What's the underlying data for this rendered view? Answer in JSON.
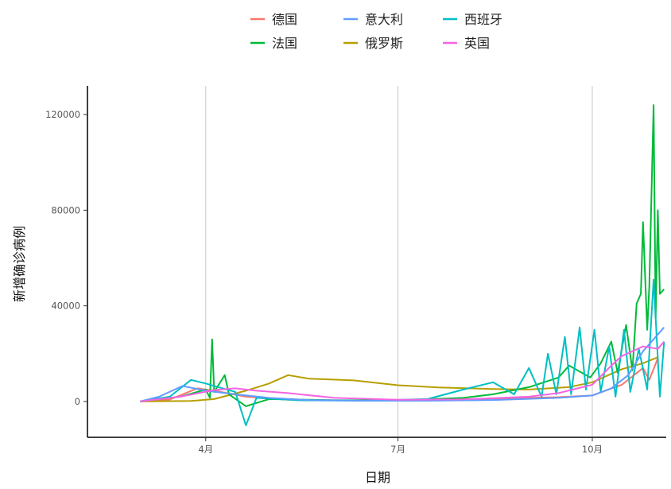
{
  "chart_data": {
    "type": "line",
    "xlabel": "日期",
    "ylabel": "新增确诊病例",
    "x_ticks": [
      {
        "label": "4月",
        "date": "2020-04-01"
      },
      {
        "label": "7月",
        "date": "2020-07-01"
      },
      {
        "label": "10月",
        "date": "2020-10-01"
      }
    ],
    "y_ticks": [
      0,
      40000,
      80000,
      120000
    ],
    "ylim": [
      -15000,
      132000
    ],
    "xlim": [
      "2020-02-05",
      "2020-11-05"
    ],
    "grid": "vertical-major",
    "legend_position": "top",
    "series": [
      {
        "name": "德国",
        "color": "#F8766D",
        "points": [
          [
            "2020-03-01",
            0
          ],
          [
            "2020-03-15",
            800
          ],
          [
            "2020-03-28",
            5500
          ],
          [
            "2020-04-05",
            4500
          ],
          [
            "2020-04-20",
            2000
          ],
          [
            "2020-05-10",
            700
          ],
          [
            "2020-06-15",
            400
          ],
          [
            "2020-07-15",
            500
          ],
          [
            "2020-08-15",
            1200
          ],
          [
            "2020-09-15",
            1800
          ],
          [
            "2020-10-01",
            2500
          ],
          [
            "2020-10-15",
            7000
          ],
          [
            "2020-10-25",
            14000
          ],
          [
            "2020-10-28",
            9000
          ],
          [
            "2020-11-01",
            18000
          ]
        ]
      },
      {
        "name": "俄罗斯",
        "color": "#B79F00",
        "points": [
          [
            "2020-03-01",
            0
          ],
          [
            "2020-03-25",
            200
          ],
          [
            "2020-04-05",
            1000
          ],
          [
            "2020-04-20",
            4500
          ],
          [
            "2020-05-01",
            7500
          ],
          [
            "2020-05-10",
            11000
          ],
          [
            "2020-05-20",
            9500
          ],
          [
            "2020-06-10",
            8800
          ],
          [
            "2020-07-01",
            6800
          ],
          [
            "2020-07-20",
            5900
          ],
          [
            "2020-08-15",
            5200
          ],
          [
            "2020-09-01",
            5000
          ],
          [
            "2020-09-20",
            6000
          ],
          [
            "2020-10-01",
            8000
          ],
          [
            "2020-10-15",
            13500
          ],
          [
            "2020-10-25",
            16000
          ],
          [
            "2020-11-01",
            18500
          ]
        ]
      },
      {
        "name": "法国",
        "color": "#00BA38",
        "points": [
          [
            "2020-03-01",
            0
          ],
          [
            "2020-03-20",
            2000
          ],
          [
            "2020-04-01",
            5000
          ],
          [
            "2020-04-03",
            1500
          ],
          [
            "2020-04-04",
            26000
          ],
          [
            "2020-04-05",
            4000
          ],
          [
            "2020-04-10",
            11000
          ],
          [
            "2020-04-12",
            3000
          ],
          [
            "2020-04-20",
            -2000
          ],
          [
            "2020-05-01",
            1000
          ],
          [
            "2020-06-01",
            500
          ],
          [
            "2020-07-01",
            500
          ],
          [
            "2020-08-01",
            1500
          ],
          [
            "2020-08-15",
            3000
          ],
          [
            "2020-09-01",
            6000
          ],
          [
            "2020-09-15",
            10000
          ],
          [
            "2020-09-20",
            15000
          ],
          [
            "2020-09-30",
            10000
          ],
          [
            "2020-10-05",
            16000
          ],
          [
            "2020-10-10",
            25000
          ],
          [
            "2020-10-13",
            12000
          ],
          [
            "2020-10-17",
            32000
          ],
          [
            "2020-10-20",
            13000
          ],
          [
            "2020-10-22",
            41000
          ],
          [
            "2020-10-24",
            45000
          ],
          [
            "2020-10-25",
            75000
          ],
          [
            "2020-10-27",
            30000
          ],
          [
            "2020-10-28",
            48000
          ],
          [
            "2020-10-30",
            124000
          ],
          [
            "2020-10-31",
            35000
          ],
          [
            "2020-11-01",
            80000
          ],
          [
            "2020-11-02",
            45000
          ],
          [
            "2020-11-04",
            47000
          ]
        ]
      },
      {
        "name": "西班牙",
        "color": "#00BFC4",
        "points": [
          [
            "2020-03-01",
            0
          ],
          [
            "2020-03-15",
            2000
          ],
          [
            "2020-03-25",
            9000
          ],
          [
            "2020-04-01",
            7500
          ],
          [
            "2020-04-15",
            4000
          ],
          [
            "2020-04-20",
            -10000
          ],
          [
            "2020-04-25",
            1500
          ],
          [
            "2020-05-15",
            500
          ],
          [
            "2020-06-15",
            300
          ],
          [
            "2020-07-15",
            1000
          ],
          [
            "2020-08-01",
            5000
          ],
          [
            "2020-08-15",
            8000
          ],
          [
            "2020-08-25",
            3000
          ],
          [
            "2020-09-01",
            14000
          ],
          [
            "2020-09-07",
            2000
          ],
          [
            "2020-09-10",
            20000
          ],
          [
            "2020-09-14",
            3000
          ],
          [
            "2020-09-18",
            27000
          ],
          [
            "2020-09-21",
            3000
          ],
          [
            "2020-09-25",
            31000
          ],
          [
            "2020-09-28",
            5000
          ],
          [
            "2020-10-02",
            30000
          ],
          [
            "2020-10-05",
            4000
          ],
          [
            "2020-10-09",
            23000
          ],
          [
            "2020-10-12",
            2000
          ],
          [
            "2020-10-16",
            30000
          ],
          [
            "2020-10-19",
            4000
          ],
          [
            "2020-10-23",
            22000
          ],
          [
            "2020-10-27",
            5000
          ],
          [
            "2020-10-30",
            51000
          ],
          [
            "2020-11-02",
            2000
          ],
          [
            "2020-11-04",
            25000
          ]
        ]
      },
      {
        "name": "意大利",
        "color": "#619CFF",
        "points": [
          [
            "2020-03-01",
            0
          ],
          [
            "2020-03-10",
            2000
          ],
          [
            "2020-03-21",
            6500
          ],
          [
            "2020-04-01",
            4500
          ],
          [
            "2020-04-15",
            3000
          ],
          [
            "2020-05-01",
            1500
          ],
          [
            "2020-05-20",
            600
          ],
          [
            "2020-06-15",
            300
          ],
          [
            "2020-07-15",
            300
          ],
          [
            "2020-08-15",
            600
          ],
          [
            "2020-09-15",
            1500
          ],
          [
            "2020-10-01",
            2500
          ],
          [
            "2020-10-10",
            5500
          ],
          [
            "2020-10-18",
            11000
          ],
          [
            "2020-10-25",
            21000
          ],
          [
            "2020-10-30",
            26000
          ],
          [
            "2020-11-04",
            31000
          ]
        ]
      },
      {
        "name": "英国",
        "color": "#F564E3",
        "points": [
          [
            "2020-03-01",
            0
          ],
          [
            "2020-03-20",
            2000
          ],
          [
            "2020-04-05",
            4800
          ],
          [
            "2020-04-15",
            5500
          ],
          [
            "2020-04-25",
            4500
          ],
          [
            "2020-05-10",
            3500
          ],
          [
            "2020-06-01",
            1500
          ],
          [
            "2020-07-01",
            700
          ],
          [
            "2020-08-01",
            900
          ],
          [
            "2020-09-01",
            2000
          ],
          [
            "2020-09-15",
            3500
          ],
          [
            "2020-10-01",
            7000
          ],
          [
            "2020-10-10",
            15000
          ],
          [
            "2020-10-15",
            19000
          ],
          [
            "2020-10-25",
            23000
          ],
          [
            "2020-11-01",
            22000
          ],
          [
            "2020-11-04",
            25000
          ]
        ]
      }
    ]
  }
}
